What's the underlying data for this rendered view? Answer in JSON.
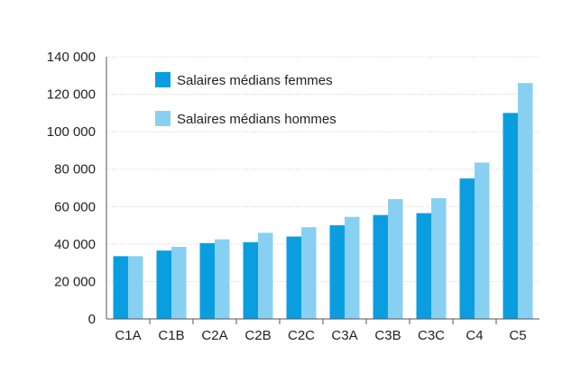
{
  "chart_data": {
    "type": "bar",
    "categories": [
      "C1A",
      "C1B",
      "C2A",
      "C2B",
      "C2C",
      "C3A",
      "C3B",
      "C3C",
      "C4",
      "C5"
    ],
    "series": [
      {
        "name": "Salaires médians femmes",
        "color": "#0a9ee0",
        "values": [
          33500,
          36500,
          40500,
          41000,
          44000,
          50000,
          55500,
          56500,
          75000,
          110000
        ]
      },
      {
        "name": "Salaires médians hommes",
        "color": "#88d0f2",
        "values": [
          33500,
          38500,
          42500,
          46000,
          49000,
          54500,
          64000,
          64500,
          83500,
          126000
        ]
      }
    ],
    "yticks": [
      "0",
      "20 000",
      "40 000",
      "60 000",
      "80 000",
      "100 000",
      "120 000",
      "140 000"
    ],
    "ytick_values": [
      0,
      20000,
      40000,
      60000,
      80000,
      100000,
      120000,
      140000
    ],
    "ylim": [
      0,
      140000
    ],
    "grid": true,
    "legend_position": "top-left"
  }
}
